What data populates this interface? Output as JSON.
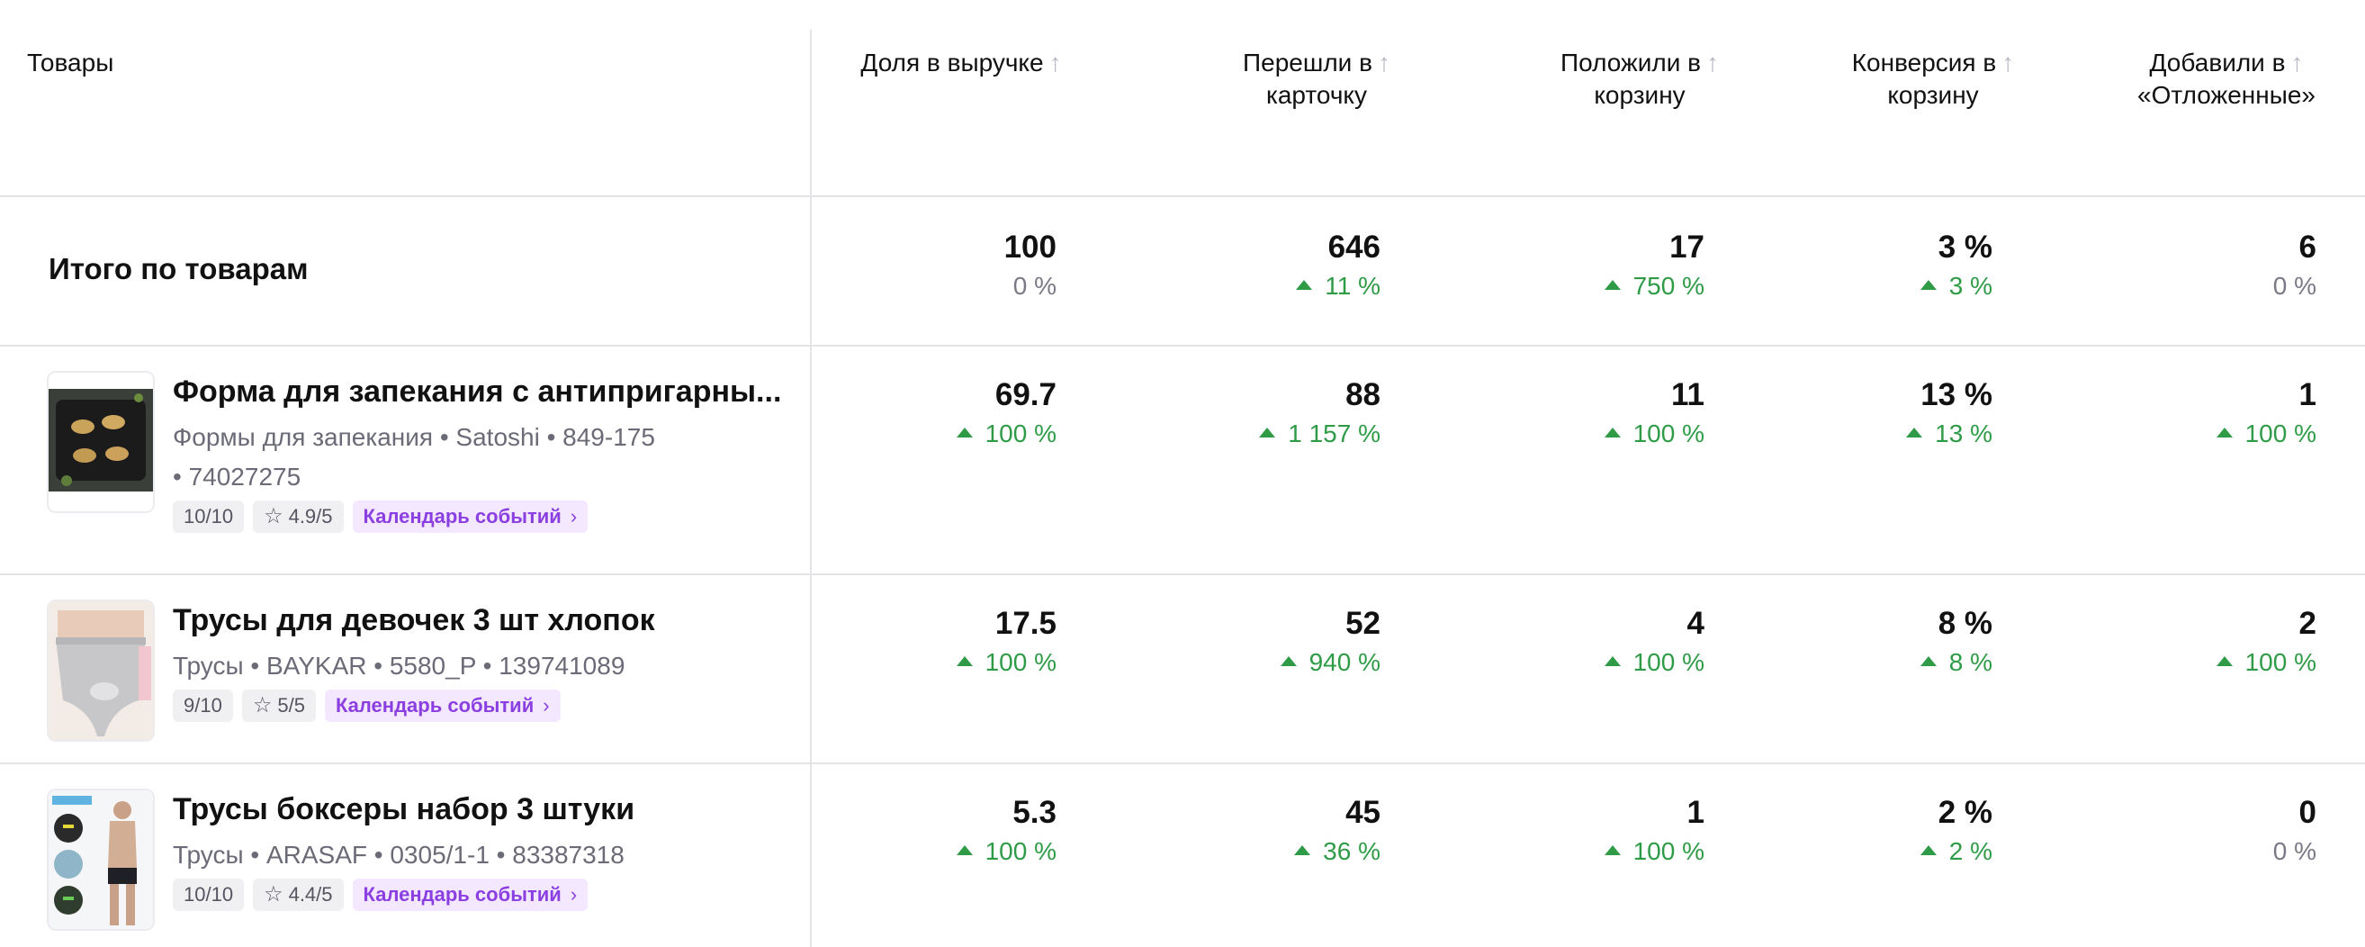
{
  "header": {
    "products": "Товары",
    "columns": [
      {
        "line1": "Доля в выручке",
        "line2": ""
      },
      {
        "line1": "Перешли в",
        "line2": "карточку"
      },
      {
        "line1": "Положили в",
        "line2": "корзину"
      },
      {
        "line1": "Конверсия в",
        "line2": "корзину"
      },
      {
        "line1": "Добавили в",
        "line2": "«Отложенные»"
      }
    ],
    "sort_icon": "arrow-up-icon"
  },
  "total": {
    "label": "Итого по товарам",
    "metrics": [
      {
        "value": "100",
        "delta": "0 %",
        "trend": "flat"
      },
      {
        "value": "646",
        "delta": "11 %",
        "trend": "up"
      },
      {
        "value": "17",
        "delta": "750 %",
        "trend": "up"
      },
      {
        "value": "3 %",
        "delta": "3 %",
        "trend": "up"
      },
      {
        "value": "6",
        "delta": "0 %",
        "trend": "flat"
      }
    ]
  },
  "products": [
    {
      "name": "Форма для запекания с антипригарны...",
      "meta_line1": "Формы для запекания • Satoshi • 849-175",
      "meta_line2": "• 74027275",
      "score": "10/10",
      "rating": "4.9/5",
      "calendar": "Календарь событий",
      "metrics": [
        {
          "value": "69.7",
          "delta": "100 %",
          "trend": "up"
        },
        {
          "value": "88",
          "delta": "1 157 %",
          "trend": "up"
        },
        {
          "value": "11",
          "delta": "100 %",
          "trend": "up"
        },
        {
          "value": "13 %",
          "delta": "13 %",
          "trend": "up"
        },
        {
          "value": "1",
          "delta": "100 %",
          "trend": "up"
        }
      ]
    },
    {
      "name": "Трусы для девочек 3 шт хлопок",
      "meta_line1": "Трусы • BAYKAR • 5580_P • 139741089",
      "meta_line2": "",
      "score": "9/10",
      "rating": "5/5",
      "calendar": "Календарь событий",
      "metrics": [
        {
          "value": "17.5",
          "delta": "100 %",
          "trend": "up"
        },
        {
          "value": "52",
          "delta": "940 %",
          "trend": "up"
        },
        {
          "value": "4",
          "delta": "100 %",
          "trend": "up"
        },
        {
          "value": "8 %",
          "delta": "8 %",
          "trend": "up"
        },
        {
          "value": "2",
          "delta": "100 %",
          "trend": "up"
        }
      ]
    },
    {
      "name": "Трусы боксеры набор 3 штуки",
      "meta_line1": "Трусы • ARASAF • 0305/1-1 • 83387318",
      "meta_line2": "",
      "score": "10/10",
      "rating": "4.4/5",
      "calendar": "Календарь событий",
      "metrics": [
        {
          "value": "5.3",
          "delta": "100 %",
          "trend": "up"
        },
        {
          "value": "45",
          "delta": "36 %",
          "trend": "up"
        },
        {
          "value": "1",
          "delta": "100 %",
          "trend": "up"
        },
        {
          "value": "2 %",
          "delta": "2 %",
          "trend": "up"
        },
        {
          "value": "0",
          "delta": "0 %",
          "trend": "flat"
        }
      ]
    }
  ],
  "colors": {
    "up": "#2f9b47",
    "flat": "#7a7a86",
    "calendar_text": "#8b3fe0",
    "calendar_bg": "#f3e8ff"
  }
}
